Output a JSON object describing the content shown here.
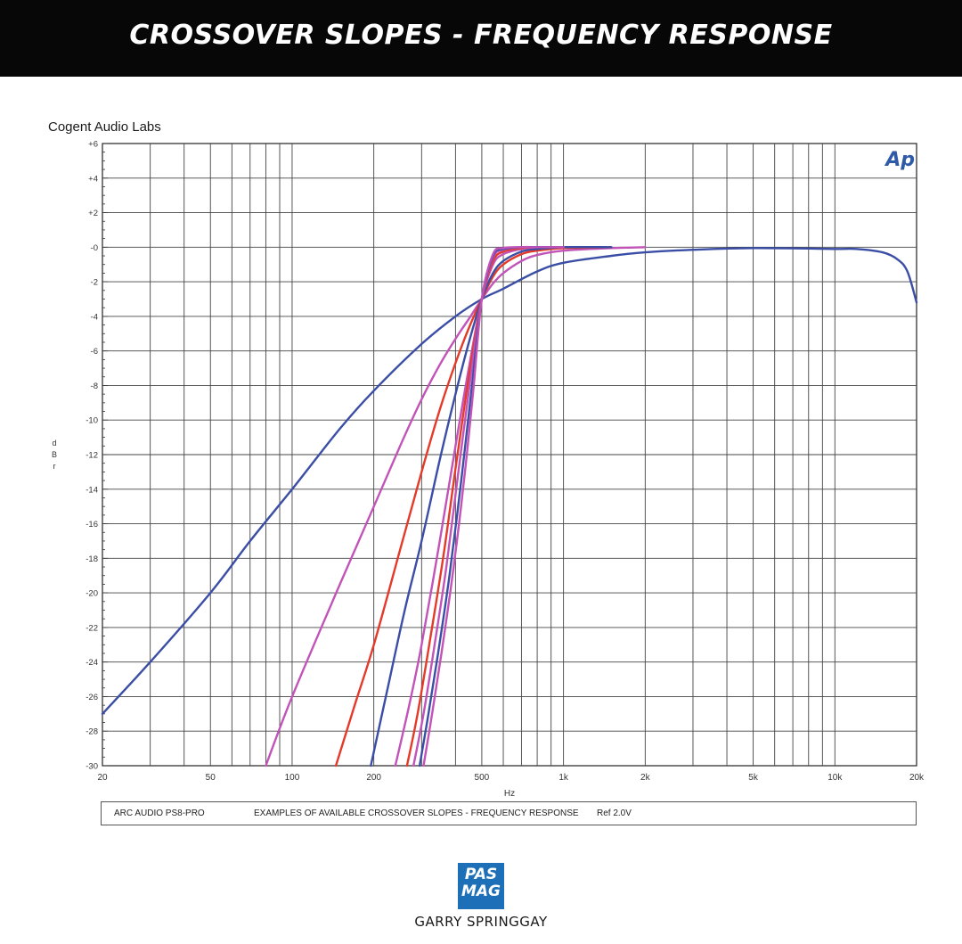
{
  "banner": {
    "title": "CROSSOVER SLOPES - FREQUENCY RESPONSE"
  },
  "chart_data": {
    "type": "line",
    "lab": "Cogent Audio Labs",
    "badge": "Ap",
    "xlabel": "Hz",
    "ylabel": "dBr",
    "x_scale": "log",
    "xlim": [
      20,
      20000
    ],
    "ylim": [
      -30,
      6
    ],
    "grid": true,
    "x_tick_labels": [
      {
        "value": 20,
        "label": "20"
      },
      {
        "value": 50,
        "label": "50"
      },
      {
        "value": 100,
        "label": "100"
      },
      {
        "value": 200,
        "label": "200"
      },
      {
        "value": 500,
        "label": "500"
      },
      {
        "value": 1000,
        "label": "1k"
      },
      {
        "value": 2000,
        "label": "2k"
      },
      {
        "value": 5000,
        "label": "5k"
      },
      {
        "value": 10000,
        "label": "10k"
      },
      {
        "value": 20000,
        "label": "20k"
      }
    ],
    "y_tick_labels": [
      {
        "value": 6,
        "label": "+6"
      },
      {
        "value": 4,
        "label": "+4"
      },
      {
        "value": 2,
        "label": "+2"
      },
      {
        "value": 0,
        "label": "-0"
      },
      {
        "value": -2,
        "label": "-2"
      },
      {
        "value": -4,
        "label": "-4"
      },
      {
        "value": -6,
        "label": "-6"
      },
      {
        "value": -8,
        "label": "-8"
      },
      {
        "value": -10,
        "label": "-10"
      },
      {
        "value": -12,
        "label": "-12"
      },
      {
        "value": -14,
        "label": "-14"
      },
      {
        "value": -16,
        "label": "-16"
      },
      {
        "value": -18,
        "label": "-18"
      },
      {
        "value": -20,
        "label": "-20"
      },
      {
        "value": -22,
        "label": "-22"
      },
      {
        "value": -24,
        "label": "-24"
      },
      {
        "value": -26,
        "label": "-26"
      },
      {
        "value": -28,
        "label": "-28"
      },
      {
        "value": -30,
        "label": "-30"
      }
    ],
    "series": [
      {
        "color": "#3b4ea6",
        "x": [
          20,
          30,
          50,
          70,
          100,
          150,
          200,
          300,
          400,
          500,
          600,
          800,
          1000,
          1500,
          2000,
          3000,
          5000,
          10000,
          12000,
          15000,
          17000,
          18500,
          20000
        ],
        "y": [
          -27,
          -24,
          -20,
          -17,
          -14,
          -10.5,
          -8.3,
          -5.6,
          -4,
          -3,
          -2.4,
          -1.4,
          -0.9,
          -0.5,
          -0.3,
          -0.15,
          -0.05,
          -0.1,
          -0.1,
          -0.3,
          -0.7,
          -1.4,
          -3.2
        ]
      },
      {
        "color": "#c253b8",
        "x": [
          80,
          100,
          150,
          200,
          250,
          300,
          350,
          400,
          450,
          500,
          550,
          600,
          700,
          800,
          1000,
          1500,
          2000
        ],
        "y": [
          -30,
          -26,
          -19.5,
          -15,
          -11.5,
          -8.8,
          -6.8,
          -5.3,
          -4.1,
          -3,
          -2.1,
          -1.5,
          -0.8,
          -0.45,
          -0.2,
          -0.05,
          0
        ]
      },
      {
        "color": "#e33a2a",
        "x": [
          145,
          170,
          200,
          250,
          300,
          350,
          400,
          450,
          500,
          550,
          600,
          700,
          800,
          1000,
          1500
        ],
        "y": [
          -30,
          -26.5,
          -23,
          -17.5,
          -13,
          -9.4,
          -6.7,
          -4.6,
          -3,
          -1.7,
          -1,
          -0.4,
          -0.2,
          -0.05,
          0
        ]
      },
      {
        "color": "#3b4ea6",
        "x": [
          195,
          225,
          260,
          300,
          350,
          400,
          450,
          500,
          550,
          600,
          700,
          800,
          1000,
          1500
        ],
        "y": [
          -30,
          -25.5,
          -21,
          -17,
          -12.3,
          -8.5,
          -5.4,
          -3,
          -1.5,
          -0.8,
          -0.25,
          -0.1,
          0,
          0
        ]
      },
      {
        "color": "#c253b8",
        "x": [
          240,
          270,
          300,
          350,
          400,
          450,
          500,
          550,
          600,
          700,
          800,
          1000
        ],
        "y": [
          -30,
          -26.5,
          -23,
          -17,
          -11.5,
          -6.8,
          -3,
          -1,
          -0.4,
          -0.1,
          0,
          0
        ]
      },
      {
        "color": "#e33a2a",
        "x": [
          265,
          290,
          320,
          360,
          400,
          450,
          500,
          550,
          600,
          700,
          800,
          1000
        ],
        "y": [
          -30,
          -27,
          -23,
          -18,
          -12.8,
          -7.3,
          -3,
          -0.8,
          -0.25,
          -0.05,
          0,
          0
        ]
      },
      {
        "color": "#c253b8",
        "x": [
          280,
          305,
          335,
          370,
          410,
          455,
          500,
          550,
          600,
          700,
          800,
          1000
        ],
        "y": [
          -30,
          -27,
          -23,
          -18.5,
          -13,
          -7.5,
          -3,
          -0.6,
          -0.15,
          0,
          0,
          0
        ]
      },
      {
        "color": "#3b4ea6",
        "x": [
          295,
          318,
          345,
          380,
          420,
          460,
          500,
          550,
          600,
          700,
          800,
          1000
        ],
        "y": [
          -30,
          -27,
          -23.5,
          -19,
          -13.5,
          -8,
          -3,
          -0.5,
          -0.1,
          0,
          0,
          0
        ]
      },
      {
        "color": "#c253b8",
        "x": [
          305,
          328,
          355,
          390,
          430,
          465,
          500,
          550,
          600,
          700,
          800,
          1000
        ],
        "y": [
          -30,
          -27,
          -23.5,
          -19,
          -13.5,
          -8.3,
          -3,
          -0.4,
          -0.05,
          0,
          0,
          0
        ]
      }
    ]
  },
  "caption": {
    "device": "ARC AUDIO  PS8-PRO",
    "description": "EXAMPLES OF AVAILABLE CROSSOVER SLOPES  -  FREQUENCY RESPONSE",
    "ref": "Ref 2.0V"
  },
  "logo": {
    "line1": "PAS",
    "line2": "MAG"
  },
  "credit": "GARRY SPRINGGAY"
}
